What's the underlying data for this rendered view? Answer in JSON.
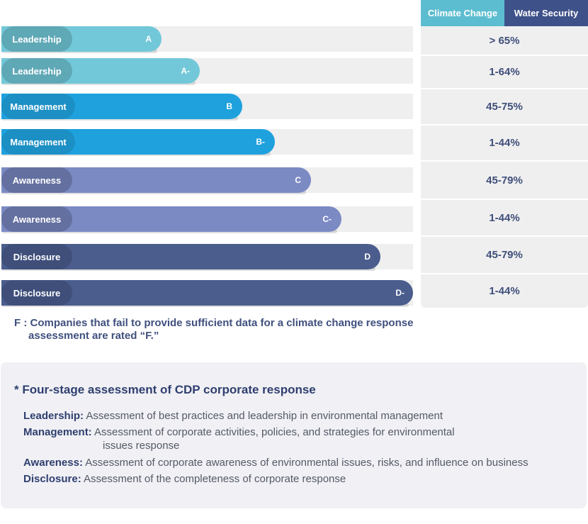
{
  "header": {
    "climate_change": "Climate Change",
    "water_security": "Water Security"
  },
  "colors": {
    "climate_tab": "#5dbdd0",
    "water_tab": "#3f5189",
    "leadership": "#5fa8b6",
    "leadership_bar": "#72c8d8",
    "management": "#1c8fc4",
    "management_bar": "#1ea1dc",
    "awareness": "#6470a0",
    "awareness_bar": "#7c8ac4",
    "disclosure": "#3f4f7a",
    "disclosure_bar": "#4a5d8d"
  },
  "levels": [
    {
      "label": "Leadership",
      "grade": "A",
      "range": "> 65%"
    },
    {
      "label": "Leadership",
      "grade": "A-",
      "range": "1-64%"
    },
    {
      "label": "Management",
      "grade": "B",
      "range": "45-75%"
    },
    {
      "label": "Management",
      "grade": "B-",
      "range": "1-44%"
    },
    {
      "label": "Awareness",
      "grade": "C",
      "range": "45-79%"
    },
    {
      "label": "Awareness",
      "grade": "C-",
      "range": "1-44%"
    },
    {
      "label": "Disclosure",
      "grade": "D",
      "range": "45-79%"
    },
    {
      "label": "Disclosure",
      "grade": "D-",
      "range": "1-44%"
    }
  ],
  "footnote": {
    "line1": "F : Companies that fail to provide sufficient data for a climate change response",
    "line2": "assessment are rated “F.”"
  },
  "assessment": {
    "title": "* Four-stage assessment of CDP corporate response",
    "items": [
      {
        "term": "Leadership:",
        "desc": "Assessment of best practices and leadership in environmental management"
      },
      {
        "term": "Management:",
        "desc": "Assessment of corporate activities, policies, and strategies for environmental",
        "desc2": "issues response"
      },
      {
        "term": "Awareness:",
        "desc": "Assessment of corporate awareness of environmental issues, risks, and influence on business"
      },
      {
        "term": "Disclosure:",
        "desc": "Assessment of the completeness of corporate response"
      }
    ]
  }
}
